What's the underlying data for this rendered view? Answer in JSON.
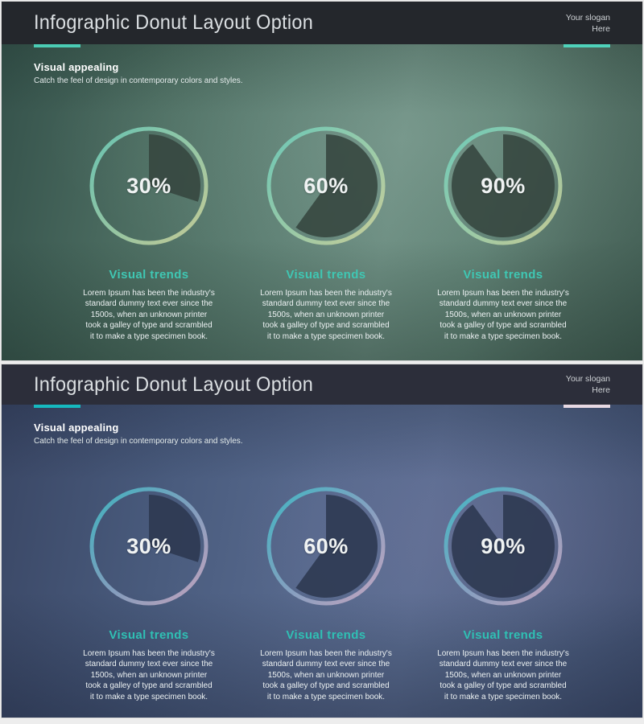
{
  "chart_data": [
    {
      "type": "pie",
      "variant": "donut",
      "slide": "teal",
      "title": "Infographic Donut Layout Option",
      "series": [
        {
          "name": "Visual trends",
          "percent": 30
        },
        {
          "name": "Visual trends",
          "percent": 60
        },
        {
          "name": "Visual trends",
          "percent": 90
        }
      ]
    },
    {
      "type": "pie",
      "variant": "donut",
      "slide": "blue",
      "title": "Infographic Donut Layout Option",
      "series": [
        {
          "name": "Visual trends",
          "percent": 30
        },
        {
          "name": "Visual trends",
          "percent": 60
        },
        {
          "name": "Visual trends",
          "percent": 90
        }
      ]
    }
  ],
  "slides": [
    {
      "name": "teal",
      "header": {
        "title": "Infographic Donut Layout Option",
        "slogan_line1": "Your slogan",
        "slogan_line2": "Here"
      },
      "intro": {
        "heading": "Visual appealing",
        "subheading": "Catch the feel of design in contemporary colors and styles."
      },
      "colors": {
        "header_bg": "#24272c",
        "accent_left": "#4bccb4",
        "accent_right": "#4fd2ba",
        "ring_from": "#6fd3c0",
        "ring_mid": "#a3d5ae",
        "ring_to": "#d8d89c",
        "slice": "#36453f",
        "trend_title": "#3fc7b3"
      },
      "donuts": [
        {
          "percent": 30,
          "label": "30%",
          "title": "Visual trends",
          "body": "Lorem Ipsum has been the industry's\nstandard dummy text ever since the\n1500s, when an unknown printer\ntook a galley of type and scrambled\nit to make a type specimen book."
        },
        {
          "percent": 60,
          "label": "60%",
          "title": "Visual trends",
          "body": "Lorem Ipsum has been the industry's\nstandard dummy text ever since the\n1500s, when an unknown printer\ntook a galley of type and scrambled\nit to make a type specimen book."
        },
        {
          "percent": 90,
          "label": "90%",
          "title": "Visual trends",
          "body": "Lorem Ipsum has been the industry's\nstandard dummy text ever since the\n1500s, when an unknown printer\ntook a galley of type and scrambled\nit to make a type specimen book."
        }
      ]
    },
    {
      "name": "blue",
      "header": {
        "title": "Infographic Donut Layout Option",
        "slogan_line1": "Your slogan",
        "slogan_line2": "Here"
      },
      "intro": {
        "heading": "Visual appealing",
        "subheading": "Catch the feel of design in contemporary colors and styles."
      },
      "colors": {
        "header_bg": "#2c2e3a",
        "accent_left": "#16b9bf",
        "accent_right": "#e8d9e3",
        "ring_from": "#3ec4cc",
        "ring_mid": "#8fa9c9",
        "ring_to": "#d9afc7",
        "slice": "#2c3850",
        "trend_title": "#2fc0b4"
      },
      "donuts": [
        {
          "percent": 30,
          "label": "30%",
          "title": "Visual trends",
          "body": "Lorem Ipsum has been the industry's\nstandard dummy text ever since the\n1500s, when an unknown printer\ntook a galley of type and scrambled\nit to make a type specimen book."
        },
        {
          "percent": 60,
          "label": "60%",
          "title": "Visual trends",
          "body": "Lorem Ipsum has been the industry's\nstandard dummy text ever since the\n1500s, when an unknown printer\ntook a galley of type and scrambled\nit to make a type specimen book."
        },
        {
          "percent": 90,
          "label": "90%",
          "title": "Visual trends",
          "body": "Lorem Ipsum has been the industry's\nstandard dummy text ever since the\n1500s, when an unknown printer\ntook a galley of type and scrambled\nit to make a type specimen book."
        }
      ]
    }
  ]
}
